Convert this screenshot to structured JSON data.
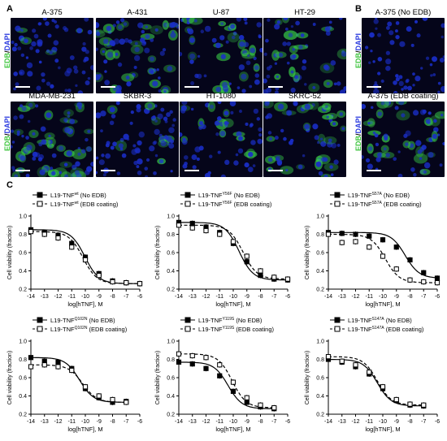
{
  "panels": {
    "a": "A",
    "b": "B",
    "c": "C"
  },
  "stain_label": {
    "green": "EDB",
    "sep": "/",
    "blue": "DAPI"
  },
  "micrographs_a": [
    {
      "name": "A-375"
    },
    {
      "name": "A-431"
    },
    {
      "name": "U-87"
    },
    {
      "name": "HT-29"
    },
    {
      "name": "MDA-MB-231"
    },
    {
      "name": "SKBR-3"
    },
    {
      "name": "HT-1080"
    },
    {
      "name": "SKRC-52"
    }
  ],
  "micrographs_b": [
    {
      "name": "A-375 (No EDB)"
    },
    {
      "name": "A-375 (EDB coating)"
    }
  ],
  "colors": {
    "dapi": "#1a2ec8",
    "edb": "#39d04a",
    "background": "#05051a"
  },
  "chart_data": [
    {
      "type": "line",
      "legend": [
        "L19-TNF",
        "L19-TNF"
      ],
      "legend_super": "wt",
      "legend_suffix": [
        " (No EDB)",
        " (EDB coating)"
      ],
      "xlabel": "log[hTNF], M",
      "ylabel": "Cell viability (fraction)",
      "xlim": [
        -14,
        -6
      ],
      "ylim": [
        0.2,
        1.0
      ],
      "xticks": [
        "-14",
        "-13",
        "-12",
        "-11",
        "-10",
        "-9",
        "-8",
        "-7",
        "-6"
      ],
      "yticks": [
        "0.2",
        "0.4",
        "0.6",
        "0.8",
        "1.0"
      ],
      "series": [
        {
          "name": "No EDB",
          "marker": "filled",
          "line": "solid",
          "x": [
            -14,
            -13,
            -12,
            -11,
            -10,
            -9,
            -8,
            -7,
            -6
          ],
          "y": [
            0.85,
            0.82,
            0.79,
            0.7,
            0.55,
            0.37,
            0.29,
            0.27,
            0.26
          ]
        },
        {
          "name": "EDB coating",
          "marker": "open",
          "line": "dashed",
          "x": [
            -14,
            -13,
            -12,
            -11,
            -10,
            -9,
            -8,
            -7,
            -6
          ],
          "y": [
            0.83,
            0.8,
            0.76,
            0.66,
            0.52,
            0.35,
            0.28,
            0.27,
            0.26
          ]
        }
      ]
    },
    {
      "type": "line",
      "legend": [
        "L19-TNF",
        "L19-TNF"
      ],
      "legend_super": "Y56F",
      "legend_suffix": [
        " (No EDB)",
        " (EDB coating)"
      ],
      "xlabel": "log[hTNF], M",
      "ylabel": "Cell viability (fraction)",
      "xlim": [
        -14,
        -6
      ],
      "ylim": [
        0.2,
        1.0
      ],
      "xticks": [
        "-14",
        "-13",
        "-12",
        "-11",
        "-10",
        "-9",
        "-8",
        "-7",
        "-6"
      ],
      "yticks": [
        "0.2",
        "0.4",
        "0.6",
        "0.8",
        "1.0"
      ],
      "series": [
        {
          "name": "No EDB",
          "marker": "filled",
          "line": "solid",
          "x": [
            -14,
            -13,
            -12,
            -11,
            -10,
            -9,
            -8,
            -7,
            -6
          ],
          "y": [
            0.93,
            0.92,
            0.88,
            0.82,
            0.7,
            0.5,
            0.35,
            0.31,
            0.3
          ]
        },
        {
          "name": "EDB coating",
          "marker": "open",
          "line": "dashed",
          "x": [
            -14,
            -13,
            -12,
            -11,
            -10,
            -9,
            -8,
            -7,
            -6
          ],
          "y": [
            0.9,
            0.87,
            0.84,
            0.8,
            0.72,
            0.56,
            0.4,
            0.33,
            0.31
          ]
        }
      ]
    },
    {
      "type": "line",
      "legend": [
        "L19-TNF",
        "L19-TNF"
      ],
      "legend_super": "S57A",
      "legend_suffix": [
        " (No EDB)",
        " (EDB coating)"
      ],
      "xlabel": "log[hTNF], M",
      "ylabel": "Cell viability (fraction)",
      "xlim": [
        -14,
        -6
      ],
      "ylim": [
        0.2,
        1.0
      ],
      "xticks": [
        "-14",
        "-13",
        "-12",
        "-11",
        "-10",
        "-9",
        "-8",
        "-7",
        "-6"
      ],
      "yticks": [
        "0.2",
        "0.4",
        "0.6",
        "0.8",
        "1.0"
      ],
      "series": [
        {
          "name": "No EDB",
          "marker": "filled",
          "line": "solid",
          "x": [
            -14,
            -13,
            -12,
            -11,
            -10,
            -9,
            -8,
            -7,
            -6
          ],
          "y": [
            0.82,
            0.81,
            0.8,
            0.78,
            0.74,
            0.66,
            0.52,
            0.38,
            0.32
          ]
        },
        {
          "name": "EDB coating",
          "marker": "open",
          "line": "dashed",
          "x": [
            -14,
            -13,
            -12,
            -11,
            -10,
            -9,
            -8,
            -7,
            -6
          ],
          "y": [
            0.8,
            0.71,
            0.72,
            0.66,
            0.56,
            0.42,
            0.3,
            0.28,
            0.27
          ]
        }
      ]
    },
    {
      "type": "line",
      "legend": [
        "L19-TNF",
        "L19-TNF"
      ],
      "legend_super": "Q102N",
      "legend_suffix": [
        " (No EDB)",
        " (EDB coating)"
      ],
      "xlabel": "log[hTNF], M",
      "ylabel": "Cell viability (fraction)",
      "xlim": [
        -14,
        -6
      ],
      "ylim": [
        0.2,
        1.0
      ],
      "xticks": [
        "-14",
        "-13",
        "-12",
        "-11",
        "-10",
        "-9",
        "-8",
        "-7",
        "-6"
      ],
      "yticks": [
        "0.2",
        "0.4",
        "0.6",
        "0.8",
        "1.0"
      ],
      "series": [
        {
          "name": "No EDB",
          "marker": "filled",
          "line": "solid",
          "x": [
            -14,
            -13,
            -12,
            -11,
            -10,
            -9,
            -8,
            -7
          ],
          "y": [
            0.82,
            0.78,
            0.77,
            0.7,
            0.48,
            0.38,
            0.33,
            0.34
          ]
        },
        {
          "name": "EDB coating",
          "marker": "open",
          "line": "dashed",
          "x": [
            -14,
            -13,
            -12,
            -11,
            -10,
            -9,
            -8,
            -7
          ],
          "y": [
            0.72,
            0.74,
            0.72,
            0.68,
            0.5,
            0.4,
            0.36,
            0.33
          ]
        }
      ]
    },
    {
      "type": "line",
      "legend": [
        "L19-TNF",
        "L19-TNF"
      ],
      "legend_super": "Y119S",
      "legend_suffix": [
        " (No EDB)",
        " (EDB coating)"
      ],
      "xlabel": "log[hTNF], M",
      "ylabel": "Cell viability (fraction)",
      "xlim": [
        -14,
        -6
      ],
      "ylim": [
        0.2,
        1.0
      ],
      "xticks": [
        "-14",
        "-13",
        "-12",
        "-11",
        "-10",
        "-9",
        "-8",
        "-7",
        "-6"
      ],
      "yticks": [
        "0.2",
        "0.4",
        "0.6",
        "0.8",
        "1.0"
      ],
      "series": [
        {
          "name": "No EDB",
          "marker": "filled",
          "line": "solid",
          "x": [
            -14,
            -13,
            -12,
            -11,
            -10,
            -9,
            -8,
            -7
          ],
          "y": [
            0.77,
            0.75,
            0.7,
            0.62,
            0.45,
            0.33,
            0.28,
            0.26
          ]
        },
        {
          "name": "EDB coating",
          "marker": "open",
          "line": "dashed",
          "x": [
            -14,
            -13,
            -12,
            -11,
            -10,
            -9,
            -8,
            -7
          ],
          "y": [
            0.86,
            0.84,
            0.82,
            0.74,
            0.55,
            0.38,
            0.3,
            0.27
          ]
        }
      ]
    },
    {
      "type": "line",
      "legend": [
        "L19-TNF",
        "L19-TNF"
      ],
      "legend_super": "S147A",
      "legend_suffix": [
        " (No EDB)",
        " (EDB coating)"
      ],
      "xlabel": "log[hTNF], M",
      "ylabel": "Cell viability (fraction)",
      "xlim": [
        -14,
        -6
      ],
      "ylim": [
        0.2,
        1.0
      ],
      "xticks": [
        "-14",
        "-13",
        "-12",
        "-11",
        "-10",
        "-9",
        "-8",
        "-7",
        "-6"
      ],
      "yticks": [
        "0.2",
        "0.4",
        "0.6",
        "0.8",
        "1.0"
      ],
      "series": [
        {
          "name": "No EDB",
          "marker": "filled",
          "line": "solid",
          "x": [
            -14,
            -13,
            -12,
            -11,
            -10,
            -9,
            -8,
            -7
          ],
          "y": [
            0.8,
            0.77,
            0.72,
            0.64,
            0.48,
            0.35,
            0.3,
            0.29
          ]
        },
        {
          "name": "EDB coating",
          "marker": "open",
          "line": "dashed",
          "x": [
            -14,
            -13,
            -12,
            -11,
            -10,
            -9,
            -8,
            -7
          ],
          "y": [
            0.83,
            0.78,
            0.74,
            0.66,
            0.5,
            0.36,
            0.31,
            0.3
          ]
        }
      ]
    }
  ]
}
